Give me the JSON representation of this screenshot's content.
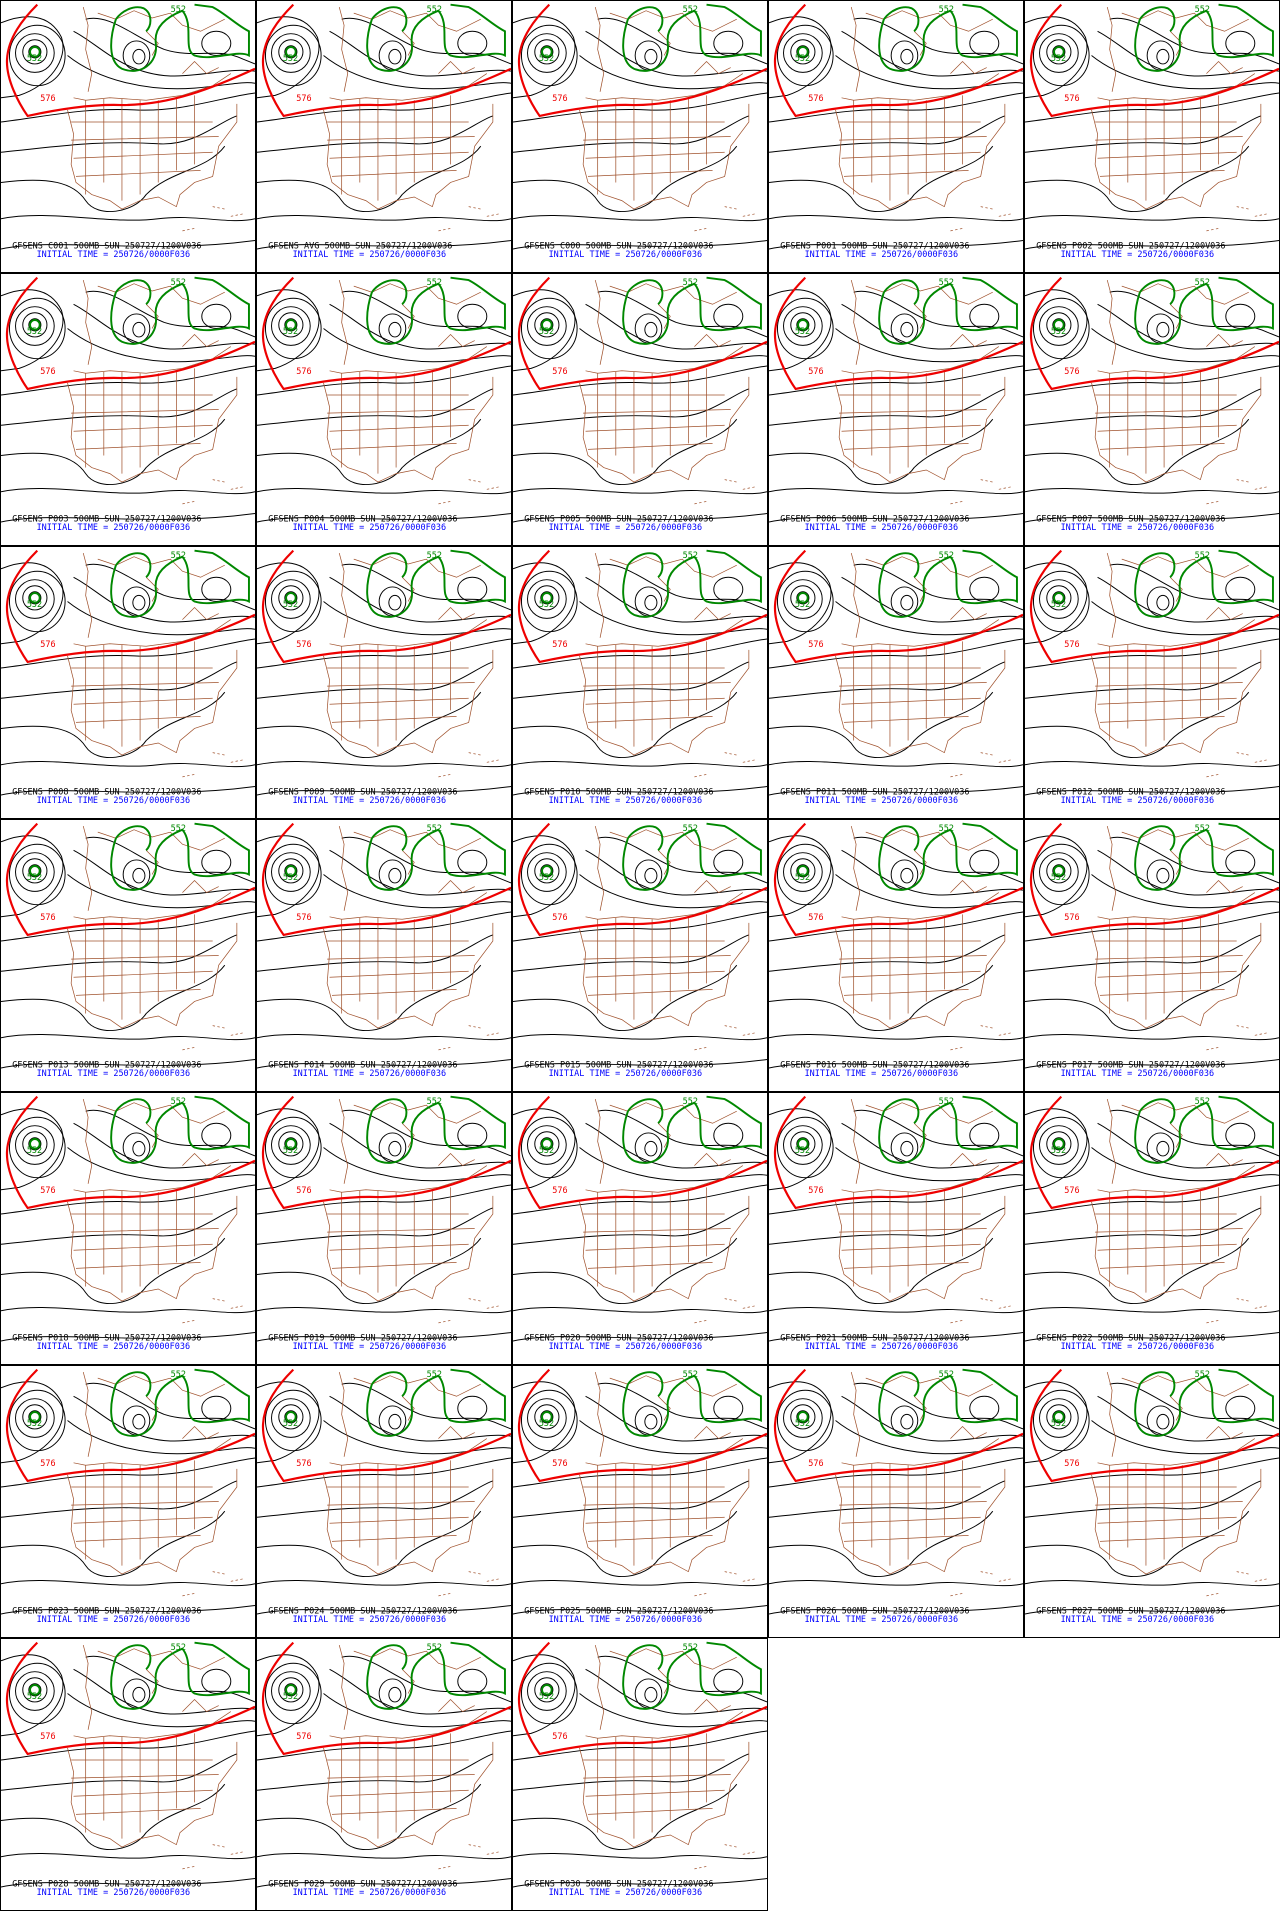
{
  "initial_time": "INITIAL TIME = 250726/0000F036",
  "contour_labels": [
    "552",
    "576"
  ],
  "panels": [
    {
      "title": "GFSENS C001 500MB SUN 250727/1200V036"
    },
    {
      "title": "GFSENS AVG 500MB SUN 250727/1200V036"
    },
    {
      "title": "GFSENS C000 500MB SUN 250727/1200V036"
    },
    {
      "title": "GFSENS P001 500MB SUN 250727/1200V036"
    },
    {
      "title": "GFSENS P002 500MB SUN 250727/1200V036"
    },
    {
      "title": "GFSENS P003 500MB SUN 250727/1200V036"
    },
    {
      "title": "GFSENS P004 500MB SUN 250727/1200V036"
    },
    {
      "title": "GFSENS P005 500MB SUN 250727/1200V036"
    },
    {
      "title": "GFSENS P006 500MB SUN 250727/1200V036"
    },
    {
      "title": "GFSENS P007 500MB SUN 250727/1200V036"
    },
    {
      "title": "GFSENS P008 500MB SUN 250727/1200V036"
    },
    {
      "title": "GFSENS P009 500MB SUN 250727/1200V036"
    },
    {
      "title": "GFSENS P010 500MB SUN 250727/1200V036"
    },
    {
      "title": "GFSENS P011 500MB SUN 250727/1200V036"
    },
    {
      "title": "GFSENS P012 500MB SUN 250727/1200V036"
    },
    {
      "title": "GFSENS P013 500MB SUN 250727/1200V036"
    },
    {
      "title": "GFSENS P014 500MB SUN 250727/1200V036"
    },
    {
      "title": "GFSENS P015 500MB SUN 250727/1200V036"
    },
    {
      "title": "GFSENS P016 500MB SUN 250727/1200V036"
    },
    {
      "title": "GFSENS P017 500MB SUN 250727/1200V036"
    },
    {
      "title": "GFSENS P018 500MB SUN 250727/1200V036"
    },
    {
      "title": "GFSENS P019 500MB SUN 250727/1200V036"
    },
    {
      "title": "GFSENS P020 500MB SUN 250727/1200V036"
    },
    {
      "title": "GFSENS P021 500MB SUN 250727/1200V036"
    },
    {
      "title": "GFSENS P022 500MB SUN 250727/1200V036"
    },
    {
      "title": "GFSENS P023 500MB SUN 250727/1200V036"
    },
    {
      "title": "GFSENS P024 500MB SUN 250727/1200V036"
    },
    {
      "title": "GFSENS P025 500MB SUN 250727/1200V036"
    },
    {
      "title": "GFSENS P026 500MB SUN 250727/1200V036"
    },
    {
      "title": "GFSENS P027 500MB SUN 250727/1200V036"
    },
    {
      "title": "GFSENS P028 500MB SUN 250727/1200V036"
    },
    {
      "title": "GFSENS P029 500MB SUN 250727/1200V036"
    },
    {
      "title": "GFSENS P030 500MB SUN 250727/1200V036"
    }
  ]
}
